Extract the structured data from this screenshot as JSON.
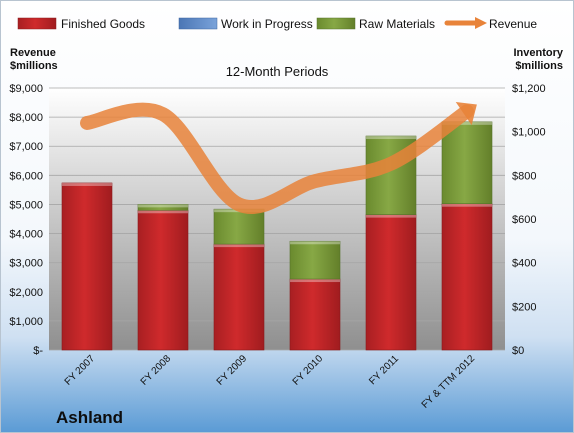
{
  "company": "Ashland",
  "chart_data": {
    "type": "bar",
    "stacked": true,
    "title": "12-Month Periods",
    "categories": [
      "FY 2007",
      "FY 2008",
      "FY 2009",
      "FY 2010",
      "FY 2011",
      "FY & TTM 2012"
    ],
    "left_axis": {
      "label_line1": "Revenue",
      "label_line2": "$millions",
      "ylim": [
        0,
        9000
      ],
      "ticks": [
        "$-",
        "$1,000",
        "$2,000",
        "$3,000",
        "$4,000",
        "$5,000",
        "$6,000",
        "$7,000",
        "$8,000",
        "$9,000"
      ]
    },
    "right_axis": {
      "label_line1": "Inventory",
      "label_line2": "$millions",
      "ylim": [
        0,
        1200
      ],
      "ticks": [
        "$0",
        "$200",
        "$400",
        "$600",
        "$800",
        "$1,000",
        "$1,200"
      ]
    },
    "series": [
      {
        "name": "Finished Goods",
        "kind": "bar",
        "axis": "right",
        "color": "#c0282a",
        "values": [
          765,
          640,
          485,
          325,
          620,
          670
        ]
      },
      {
        "name": "Work in Progress",
        "kind": "bar",
        "axis": "right",
        "color": "#5a86c5",
        "values": [
          0,
          0,
          0,
          0,
          0,
          0
        ]
      },
      {
        "name": "Raw Materials",
        "kind": "bar",
        "axis": "right",
        "color": "#7a9a3a",
        "values": [
          0,
          27,
          160,
          173,
          360,
          375
        ]
      },
      {
        "name": "Revenue",
        "kind": "line",
        "axis": "left",
        "color": "#e8833a",
        "values": [
          7800,
          8100,
          5000,
          5800,
          6400,
          8200
        ]
      }
    ],
    "grid": true,
    "legend_position": "top"
  }
}
